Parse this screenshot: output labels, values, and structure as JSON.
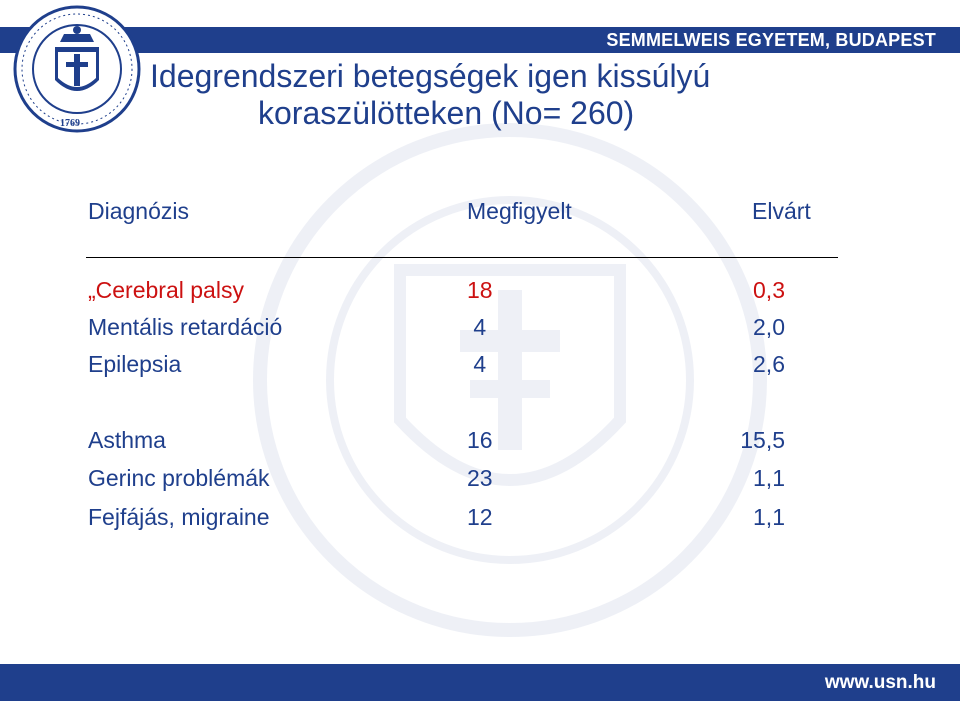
{
  "header": {
    "brand": "SEMMELWEIS EGYETEM, BUDAPEST"
  },
  "footer": {
    "url": "www.usn.hu"
  },
  "title": {
    "line1": "Idegrendszeri betegségek igen kissúlyú",
    "line2": "koraszülötteken (No= 260)"
  },
  "table": {
    "columns": [
      "Diagnózis",
      "Megfigyelt",
      "Elvárt"
    ],
    "rows": [
      {
        "diagnosis": "„Cerebral palsy",
        "observed": "18",
        "expected": "0,3",
        "highlight": true
      },
      {
        "diagnosis": "Mentális retardáció",
        "observed": " 4",
        "expected": "2,0",
        "highlight": false
      },
      {
        "diagnosis": "Epilepsia",
        "observed": " 4",
        "expected": "2,6",
        "highlight": false
      },
      {
        "diagnosis": "Asthma",
        "observed": "16",
        "expected": "15,5",
        "highlight": false
      },
      {
        "diagnosis": "Gerinc problémák",
        "observed": "23",
        "expected": "1,1",
        "highlight": false
      },
      {
        "diagnosis": "Fejfájás, migraine",
        "observed": "12",
        "expected": "1,1",
        "highlight": false
      }
    ]
  },
  "colors": {
    "brand_blue": "#1f3f8c",
    "highlight_red": "#cc1111",
    "text_blue": "#1f3f8c"
  },
  "logo_text": {
    "seal_top": "SEMMELWEISIENSIS DE SEMMELWEIS",
    "seal_left": "UNIVERSITAS BUDAPESTINENSIS",
    "seal_year": "1769"
  }
}
